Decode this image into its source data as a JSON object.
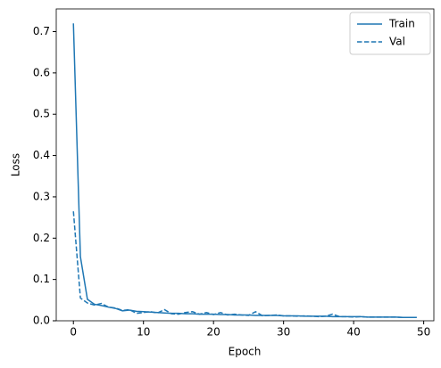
{
  "chart_data": {
    "type": "line",
    "x_label": "Epoch",
    "y_label": "Loss",
    "x": [
      0,
      1,
      2,
      3,
      4,
      5,
      6,
      7,
      8,
      9,
      10,
      11,
      12,
      13,
      14,
      15,
      16,
      17,
      18,
      19,
      20,
      21,
      22,
      23,
      24,
      25,
      26,
      27,
      28,
      29,
      30,
      31,
      32,
      33,
      34,
      35,
      36,
      37,
      38,
      39,
      40,
      41,
      42,
      43,
      44,
      45,
      46,
      47,
      48,
      49
    ],
    "series": [
      {
        "name": "Train",
        "color": "#1f77b4",
        "dash": false,
        "values": [
          0.72,
          0.155,
          0.052,
          0.04,
          0.037,
          0.033,
          0.03,
          0.024,
          0.026,
          0.023,
          0.022,
          0.021,
          0.02,
          0.019,
          0.018,
          0.018,
          0.017,
          0.017,
          0.016,
          0.016,
          0.016,
          0.015,
          0.015,
          0.014,
          0.014,
          0.014,
          0.013,
          0.013,
          0.013,
          0.013,
          0.012,
          0.012,
          0.012,
          0.011,
          0.011,
          0.011,
          0.011,
          0.01,
          0.01,
          0.01,
          0.01,
          0.01,
          0.009,
          0.009,
          0.009,
          0.009,
          0.009,
          0.008,
          0.008,
          0.008
        ]
      },
      {
        "name": "Val",
        "color": "#1f77b4",
        "dash": true,
        "values": [
          0.265,
          0.055,
          0.043,
          0.038,
          0.042,
          0.033,
          0.031,
          0.025,
          0.027,
          0.018,
          0.02,
          0.022,
          0.019,
          0.027,
          0.017,
          0.016,
          0.02,
          0.022,
          0.016,
          0.02,
          0.015,
          0.02,
          0.014,
          0.016,
          0.014,
          0.013,
          0.022,
          0.012,
          0.013,
          0.014,
          0.012,
          0.012,
          0.011,
          0.012,
          0.011,
          0.01,
          0.011,
          0.016,
          0.01,
          0.01,
          0.009,
          0.01,
          0.009,
          0.009,
          0.009,
          0.009,
          0.009,
          0.008,
          0.008,
          0.008
        ]
      }
    ],
    "xlim": [
      -2.45,
      51.45
    ],
    "ylim": [
      0,
      0.755
    ],
    "xticks": [
      0,
      10,
      20,
      30,
      40,
      50
    ],
    "yticks": [
      {
        "value": 0,
        "label": "0.0"
      },
      {
        "value": 0.1,
        "label": "0.1"
      },
      {
        "value": 0.2,
        "label": "0.2"
      },
      {
        "value": 0.3,
        "label": "0.3"
      },
      {
        "value": 0.4,
        "label": "0.4"
      },
      {
        "value": 0.5,
        "label": "0.5"
      },
      {
        "value": 0.6,
        "label": "0.6"
      },
      {
        "value": 0.7,
        "label": "0.7"
      }
    ],
    "legend": "upper right"
  }
}
